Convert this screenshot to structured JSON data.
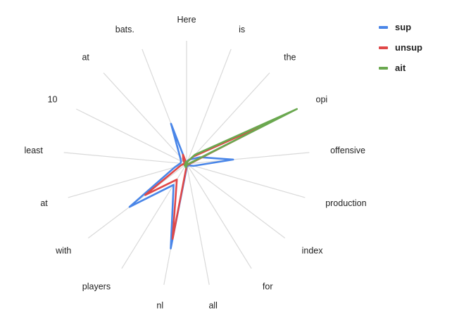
{
  "chart_data": {
    "type": "radar",
    "categories": [
      "Here",
      "is",
      "the",
      "opi",
      "offensive",
      "production",
      "index",
      "for",
      "all",
      "nl",
      "players",
      "with",
      "at",
      "least",
      "10",
      "at",
      "bats."
    ],
    "series": [
      {
        "name": "sup",
        "color": "#4a86e8",
        "values": [
          0.0,
          0.03,
          0.05,
          0.12,
          0.38,
          0.06,
          0.02,
          0.02,
          0.02,
          0.7,
          0.2,
          0.58,
          0.1,
          0.05,
          0.05,
          0.08,
          0.35
        ]
      },
      {
        "name": "unsup",
        "color": "#e04848",
        "values": [
          0.0,
          0.02,
          0.08,
          0.75,
          0.03,
          0.02,
          0.01,
          0.01,
          0.01,
          0.62,
          0.15,
          0.42,
          0.05,
          0.02,
          0.02,
          0.04,
          0.08
        ]
      },
      {
        "name": "ait",
        "color": "#6aa84f",
        "values": [
          0.0,
          0.02,
          0.1,
          1.0,
          0.02,
          0.01,
          0.01,
          0.01,
          0.01,
          0.03,
          0.02,
          0.02,
          0.01,
          0.01,
          0.01,
          0.01,
          0.02
        ]
      }
    ],
    "legend": "top-right",
    "grid": true
  }
}
